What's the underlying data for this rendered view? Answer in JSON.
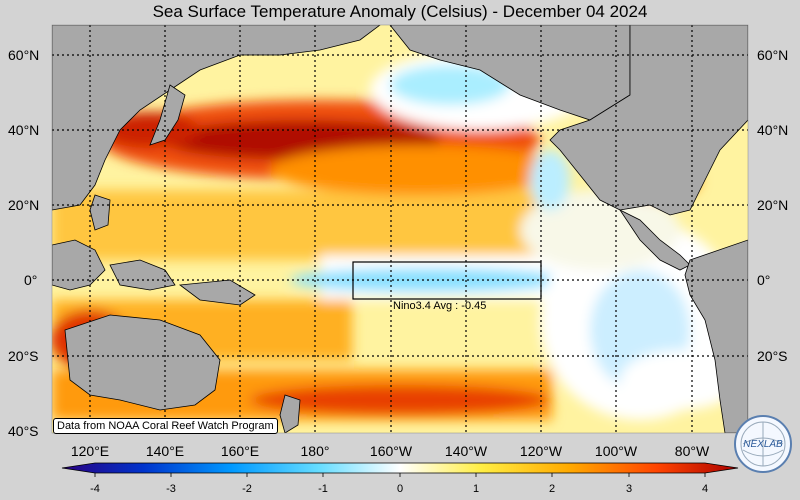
{
  "title": "Sea Surface Temperature Anomaly (Celsius) - December 04 2024",
  "latitude_labels": [
    "60°N",
    "40°N",
    "20°N",
    "0°",
    "20°S",
    "40°S"
  ],
  "longitude_labels": [
    "120°E",
    "140°E",
    "160°E",
    "180°",
    "160°W",
    "140°W",
    "120°W",
    "100°W",
    "80°W"
  ],
  "credit": "Data from NOAA Coral Reef Watch Program",
  "nino_label": "Nino3.4 Avg : -0.45",
  "colorbar": {
    "ticks": [
      "-4",
      "-3",
      "-2",
      "-1",
      "0",
      "1",
      "2",
      "3",
      "4"
    ],
    "colors": [
      "#2a0080",
      "#0033cc",
      "#0099ff",
      "#66ddff",
      "#ffffff",
      "#ffee44",
      "#ffaa00",
      "#ff4400",
      "#aa0000"
    ]
  },
  "logo_text": "NEXLAB"
}
